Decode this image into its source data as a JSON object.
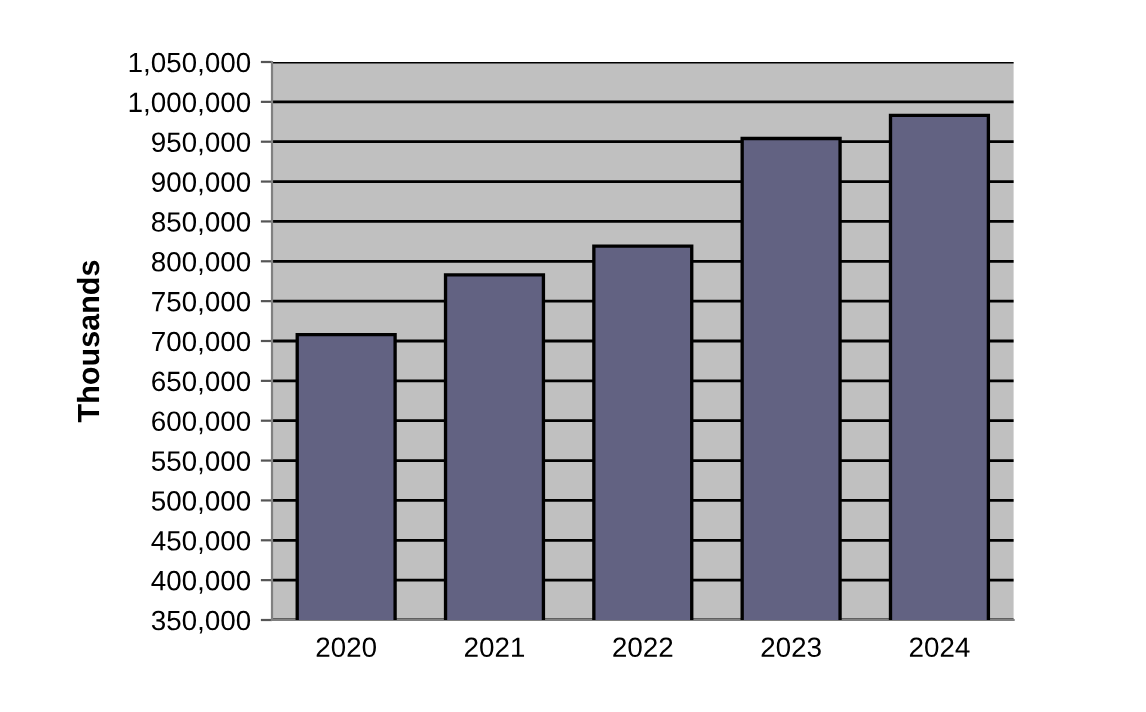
{
  "chart_data": {
    "type": "bar",
    "ylabel": "Thousands",
    "categories": [
      "2020",
      "2021",
      "2022",
      "2023",
      "2024"
    ],
    "values": [
      708000,
      783000,
      819000,
      954000,
      983000
    ],
    "color": "#626282",
    "ylim": [
      350000,
      1050000
    ],
    "yticks": [
      {
        "value": 350000,
        "label": "350,000"
      },
      {
        "value": 400000,
        "label": "400,000"
      },
      {
        "value": 450000,
        "label": "450,000"
      },
      {
        "value": 500000,
        "label": "500,000"
      },
      {
        "value": 550000,
        "label": "550,000"
      },
      {
        "value": 600000,
        "label": "600,000"
      },
      {
        "value": 650000,
        "label": "650,000"
      },
      {
        "value": 700000,
        "label": "700,000"
      },
      {
        "value": 750000,
        "label": "750,000"
      },
      {
        "value": 800000,
        "label": "800,000"
      },
      {
        "value": 850000,
        "label": "850,000"
      },
      {
        "value": 900000,
        "label": "900,000"
      },
      {
        "value": 950000,
        "label": "950,000"
      },
      {
        "value": 1000000,
        "label": "1,000,000"
      },
      {
        "value": 1050000,
        "label": "1,050,000"
      }
    ],
    "grid": "y"
  }
}
